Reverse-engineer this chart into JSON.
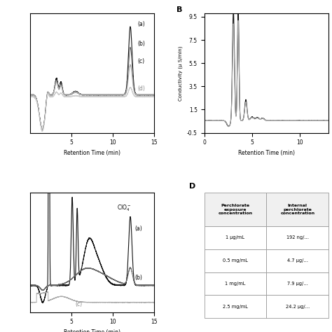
{
  "xlabel": "Retention Time (min)",
  "ylabel_B": "Conductivity (μ S/min)",
  "bg_color": "#ffffff",
  "line_color_dark": "#111111",
  "line_color_mid": "#666666",
  "line_color_light": "#aaaaaa",
  "line_color_vlight": "#cccccc",
  "table_col1_header": "Perchlorate\nexposure\nconcentration",
  "table_col2_header": "Internal\nperchlorate\nconcentration",
  "table_rows": [
    [
      "1 μg/mL",
      "192 ng/…"
    ],
    [
      "0.5 mg/mL",
      "4.7 μg/…"
    ],
    [
      "1 mg/mL",
      "7.9 μg/…"
    ],
    [
      "2.5 mg/mL",
      "24.2 μg/…"
    ]
  ]
}
